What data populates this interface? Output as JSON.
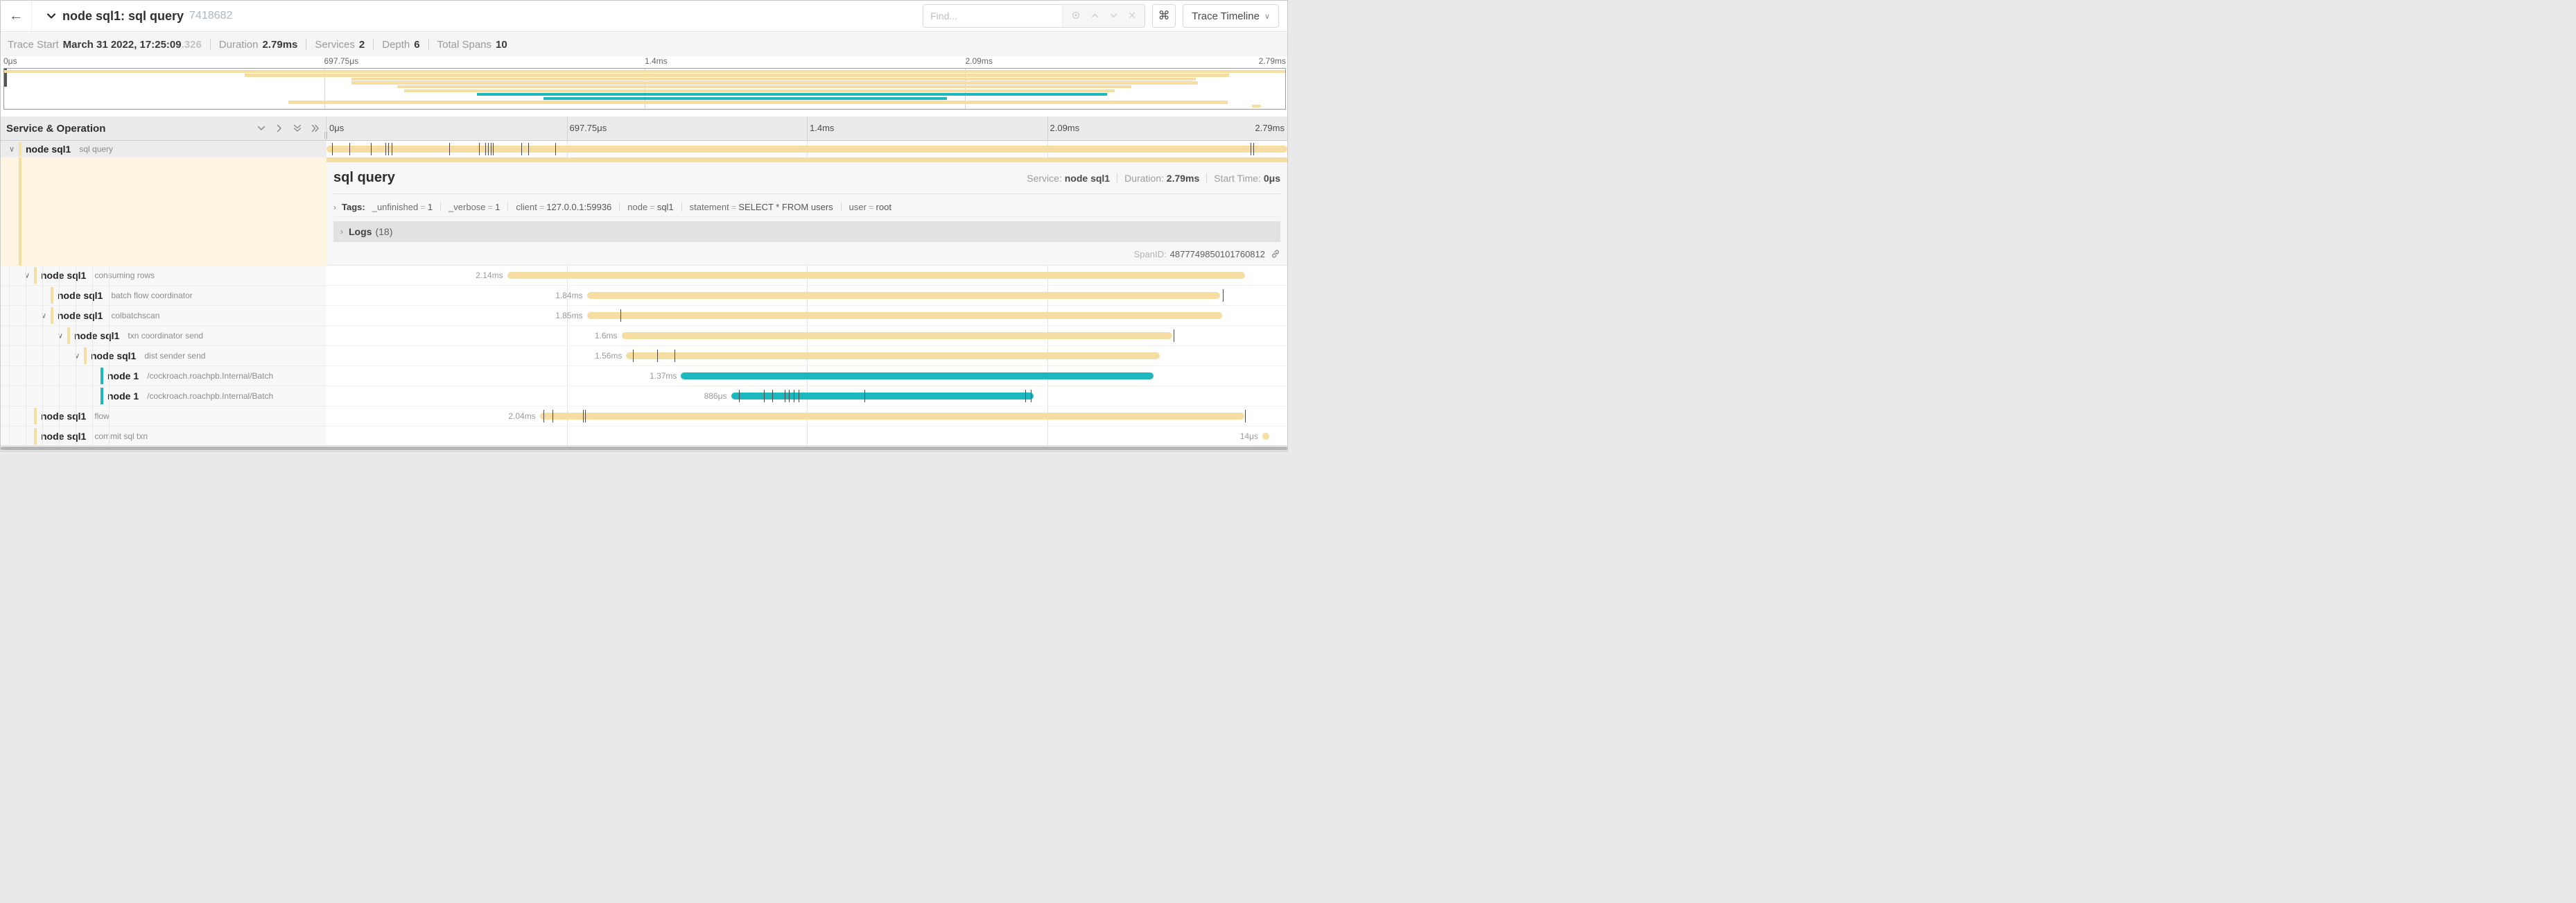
{
  "colors": {
    "tan": "#F6DDA2",
    "teal": "#1CB8BE",
    "tick": "#4a4a4a"
  },
  "header": {
    "back": "←",
    "title": "node sql1: sql query",
    "trace_id": "7418682",
    "find_placeholder": "Find...",
    "shortcut_key": "⌘",
    "view_button": "Trace Timeline",
    "find_tools": [
      "locate-icon",
      "prev-icon",
      "next-icon",
      "clear-icon"
    ]
  },
  "trace_meta": [
    {
      "label": "Trace Start",
      "value": "March 31 2022, 17:25:09",
      "suffix": ".326"
    },
    {
      "label": "Duration",
      "value": "2.79ms"
    },
    {
      "label": "Services",
      "value": "2"
    },
    {
      "label": "Depth",
      "value": "6"
    },
    {
      "label": "Total Spans",
      "value": "10"
    }
  ],
  "ruler_ticks": [
    "0μs",
    "697.75μs",
    "1.4ms",
    "2.09ms",
    "2.79ms"
  ],
  "columns": {
    "left_title": "Service & Operation"
  },
  "detail": {
    "title": "sql query",
    "service_label": "Service:",
    "service_value": "node sql1",
    "duration_label": "Duration:",
    "duration_value": "2.79ms",
    "start_label": "Start Time:",
    "start_value": "0μs",
    "tags_label": "Tags:",
    "tags": [
      {
        "key": "_unfinished",
        "value": "1"
      },
      {
        "key": "_verbose",
        "value": "1"
      },
      {
        "key": "client",
        "value": "127.0.0.1:59936"
      },
      {
        "key": "node",
        "value": "sql1"
      },
      {
        "key": "statement",
        "value": "SELECT * FROM users"
      },
      {
        "key": "user",
        "value": "root"
      }
    ],
    "logs_label": "Logs",
    "logs_count": "(18)",
    "span_id_label": "SpanID:",
    "span_id": "4877749850101760812"
  },
  "chart_data": {
    "type": "gantt-trace",
    "xlabel_ticks": [
      "0μs",
      "697.75μs",
      "1.4ms",
      "2.09ms",
      "2.79ms"
    ],
    "total_duration": "2.79ms",
    "spans": [
      {
        "service": "node sql1",
        "operation": "sql query",
        "depth": 0,
        "chevron": true,
        "color": "tan",
        "start": 0,
        "width": 100,
        "label": "",
        "selected": true,
        "ticks": [
          0.6,
          2.4,
          4.6,
          6.1,
          6.4,
          6.8,
          12.8,
          15.9,
          16.5,
          16.8,
          17.1,
          17.3,
          20.3,
          21.0,
          23.8,
          96.2,
          96.5
        ]
      },
      {
        "service": "node sql1",
        "operation": "consuming rows",
        "depth": 1,
        "chevron": true,
        "color": "tan",
        "start": 18.8,
        "width": 76.8,
        "label": "2.14ms",
        "ticks": []
      },
      {
        "service": "node sql1",
        "operation": "batch flow coordinator",
        "depth": 2,
        "chevron": false,
        "color": "tan",
        "start": 27.1,
        "width": 65.9,
        "label": "1.84ms",
        "ticks": [
          93.3
        ]
      },
      {
        "service": "node sql1",
        "operation": "colbatchscan",
        "depth": 2,
        "chevron": true,
        "color": "tan",
        "start": 27.1,
        "width": 66.1,
        "label": "1.85ms",
        "ticks": [
          30.6
        ]
      },
      {
        "service": "node sql1",
        "operation": "txn coordinator send",
        "depth": 3,
        "chevron": true,
        "color": "tan",
        "start": 30.7,
        "width": 57.3,
        "label": "1.6ms",
        "ticks": [
          88.2
        ]
      },
      {
        "service": "node sql1",
        "operation": "dist sender send",
        "depth": 4,
        "chevron": true,
        "color": "tan",
        "start": 31.2,
        "width": 55.5,
        "label": "1.56ms",
        "ticks": [
          31.9,
          34.4,
          36.2
        ]
      },
      {
        "service": "node 1",
        "operation": "/cockroach.roachpb.Internal/Batch",
        "depth": 5,
        "chevron": false,
        "color": "teal",
        "start": 36.9,
        "width": 49.2,
        "label": "1.37ms",
        "ticks": []
      },
      {
        "service": "node 1",
        "operation": "/cockroach.roachpb.Internal/Batch",
        "depth": 5,
        "chevron": false,
        "color": "teal",
        "start": 42.1,
        "width": 31.5,
        "label": "886μs",
        "ticks": [
          42.9,
          45.5,
          46.4,
          47.7,
          48.1,
          48.6,
          49.1,
          56.0,
          72.7,
          73.3
        ]
      },
      {
        "service": "node sql1",
        "operation": "flow",
        "depth": 1,
        "chevron": false,
        "color": "tan",
        "start": 22.2,
        "width": 73.3,
        "label": "2.04ms",
        "ticks": [
          22.6,
          23.5,
          26.7,
          26.9,
          95.6
        ]
      },
      {
        "service": "node sql1",
        "operation": "commit sql txn",
        "depth": 1,
        "chevron": false,
        "color": "tan",
        "start": 97.4,
        "width": 0.7,
        "label": "14μs",
        "ticks": []
      }
    ]
  }
}
